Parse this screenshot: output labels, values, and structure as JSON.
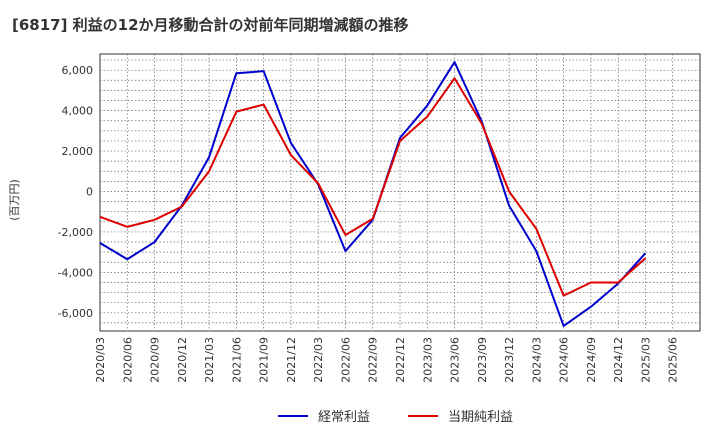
{
  "title": "[6817]  利益の12か月移動合計の対前年同期増減額の推移",
  "chart_data": {
    "type": "line",
    "title": "[6817]  利益の12か月移動合計の対前年同期増減額の推移",
    "xlabel": "",
    "ylabel": "(百万円)",
    "ylim": [
      -6900,
      6800
    ],
    "yticks": [
      6000,
      4000,
      2000,
      0,
      -2000,
      -4000,
      -6000
    ],
    "ytick_labels": [
      "6,000",
      "4,000",
      "2,000",
      "0",
      "-2,000",
      "-4,000",
      "-6,000"
    ],
    "categories": [
      "2020/03",
      "2020/06",
      "2020/09",
      "2020/12",
      "2021/03",
      "2021/06",
      "2021/09",
      "2021/12",
      "2022/03",
      "2022/06",
      "2022/09",
      "2022/12",
      "2023/03",
      "2023/06",
      "2023/09",
      "2023/12",
      "2024/03",
      "2024/06",
      "2024/09",
      "2024/12",
      "2025/03",
      "2025/06"
    ],
    "grid": true,
    "legend_position": "bottom",
    "series": [
      {
        "name": "経常利益",
        "color": "#0000cc",
        "values": [
          -2550,
          -3350,
          -2500,
          -700,
          1700,
          5850,
          5950,
          2400,
          350,
          -2950,
          -1400,
          2650,
          4250,
          6400,
          3450,
          -700,
          -2950,
          -6650,
          -5700,
          -4550,
          -3050,
          null
        ]
      },
      {
        "name": "当期純利益",
        "color": "#dd0000",
        "values": [
          -1250,
          -1750,
          -1400,
          -750,
          1000,
          3950,
          4300,
          1800,
          400,
          -2150,
          -1350,
          2500,
          3700,
          5600,
          3350,
          0,
          -1850,
          -5150,
          -4500,
          -4500,
          -3300,
          null
        ]
      }
    ]
  }
}
